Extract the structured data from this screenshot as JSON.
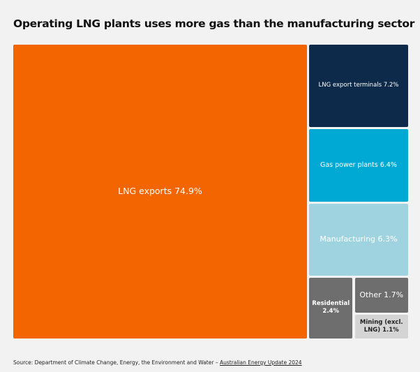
{
  "chart_data": {
    "type": "treemap",
    "title": "Operating LNG plants uses more gas than the manufacturing sector",
    "unit": "%",
    "items": [
      {
        "label": "LNG exports 74.9%",
        "value": 74.9,
        "color": "#f26500",
        "text_color": "#ffffff"
      },
      {
        "label": "LNG export terminals 7.2%",
        "value": 7.2,
        "color": "#0d2a4a",
        "text_color": "#ffffff"
      },
      {
        "label": "Gas power plants 6.4%",
        "value": 6.4,
        "color": "#00a9d3",
        "text_color": "#ffffff"
      },
      {
        "label": "Manufacturing 6.3%",
        "value": 6.3,
        "color": "#9fd3e0",
        "text_color": "#ffffff"
      },
      {
        "label": "Residential 2.4%",
        "value": 2.4,
        "color": "#6e6e6e",
        "text_color": "#ffffff"
      },
      {
        "label": "Other 1.7%",
        "value": 1.7,
        "color": "#6e6e6e",
        "text_color": "#ffffff"
      },
      {
        "label": "Mining (excl. LNG) 1.1%",
        "value": 1.1,
        "color": "#d4d4d4",
        "text_color": "#222222"
      }
    ]
  },
  "source": {
    "prefix": "Source: Department of Climate Change, Energy, the Environment and Water – ",
    "link": "Australian Energy Update 2024"
  }
}
